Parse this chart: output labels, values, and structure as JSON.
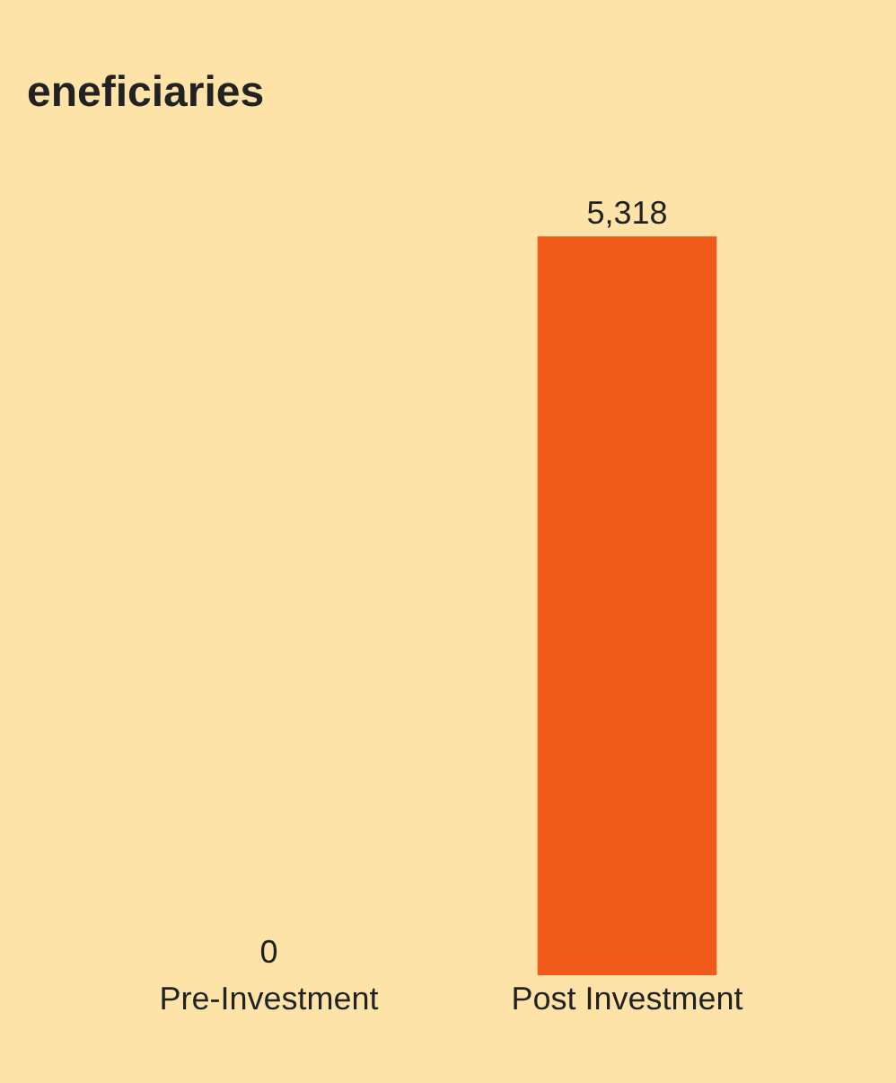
{
  "chart_data": {
    "type": "bar",
    "title": "eneficiaries",
    "categories": [
      "Pre-Investment",
      "Post Investment"
    ],
    "values": [
      0,
      5318
    ],
    "value_labels": [
      "0",
      "5,318"
    ],
    "color": "#f05a1a",
    "grid": false,
    "legend": false
  }
}
